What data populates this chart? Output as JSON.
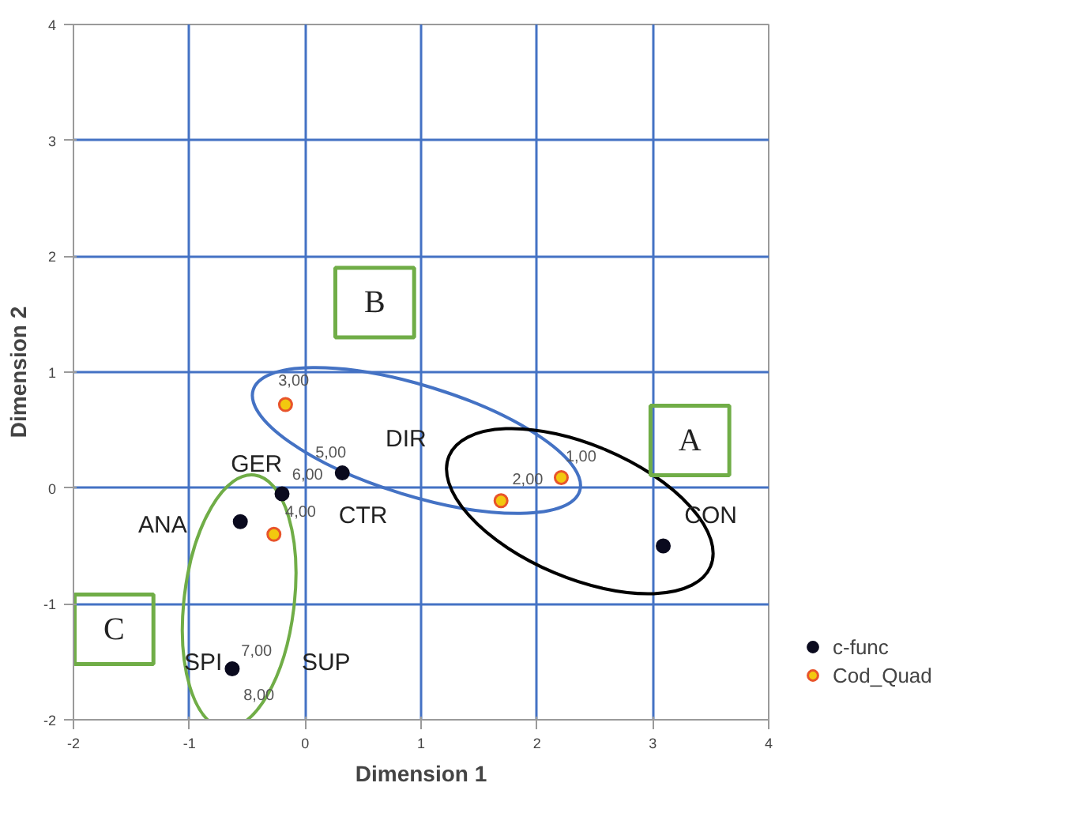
{
  "chart_data": {
    "type": "scatter",
    "xlabel": "Dimension 1",
    "ylabel": "Dimension 2",
    "xlim": [
      -2,
      4
    ],
    "ylim": [
      -2,
      4
    ],
    "xticks": [
      -2,
      -1,
      0,
      1,
      2,
      3,
      4
    ],
    "yticks": [
      -2,
      -1,
      0,
      1,
      2,
      3,
      4
    ],
    "grid": true,
    "legend": "bottom right",
    "marker": "circle",
    "series": [
      {
        "name": "c-func",
        "color": "#0a0a1e",
        "x": [
          -0.2,
          0.32,
          -0.56,
          -0.63,
          3.09
        ],
        "values": [
          -0.05,
          0.13,
          -0.29,
          -1.56,
          -0.5
        ]
      },
      {
        "name": "Cod_Quad",
        "color": "#f2c80f",
        "x": [
          -0.17,
          2.21,
          1.69,
          -0.27
        ],
        "values": [
          0.72,
          0.09,
          -0.11,
          -0.4
        ]
      }
    ],
    "annotations": [
      "GER",
      "DIR",
      "CTR",
      "ANA",
      "CON",
      "SPI",
      "SUP",
      "3,00",
      "5,00",
      "6,00",
      "4,00",
      "1,00",
      "2,00",
      "7,00",
      "8,00",
      "A",
      "B",
      "C"
    ]
  }
}
